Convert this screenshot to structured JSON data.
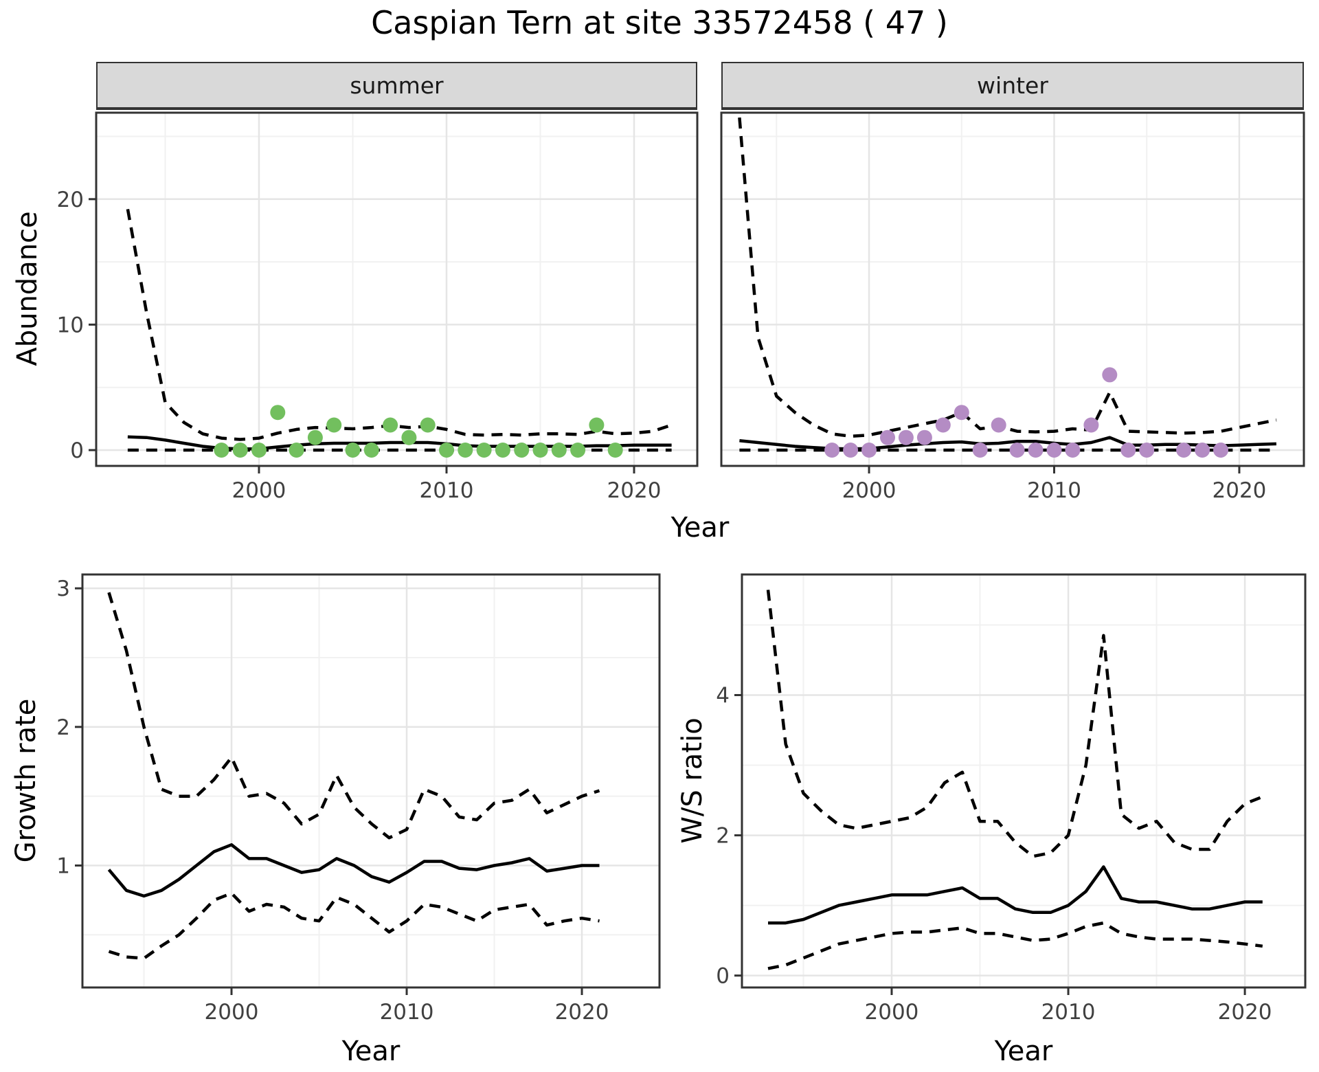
{
  "title": "Caspian Tern at site 33572458 ( 47 )",
  "facets": {
    "summer_label": "summer",
    "winter_label": "winter"
  },
  "axis_labels": {
    "abundance": "Abundance",
    "year": "Year",
    "growth_rate": "Growth rate",
    "ws_ratio": "W/S ratio"
  },
  "colors": {
    "summer_point": "#72BF5E",
    "winter_point": "#B48CC4",
    "line": "#000000",
    "strip_bg": "#d9d9d9",
    "grid_major": "#e5e5e5",
    "grid_minor": "#f1f1f1",
    "border": "#333333",
    "tick_text": "#404040"
  },
  "chart_data": [
    {
      "id": "summer",
      "type": "line",
      "facet_label": "summer",
      "ylabel": "Abundance",
      "xlabel": "Year",
      "axes": {
        "xlim": [
          1991.32,
          2023.37
        ],
        "ylim": [
          -1.26,
          26.89
        ],
        "x_major": {
          "values": [
            2000,
            2010,
            2020
          ],
          "labels": [
            "2000",
            "2010",
            "2020"
          ]
        },
        "x_minor": [
          1995,
          2005,
          2015
        ],
        "y_major": {
          "values": [
            0,
            10,
            20
          ],
          "labels": [
            "0",
            "10",
            "20"
          ]
        },
        "y_minor": [
          5,
          15,
          25
        ],
        "grid": true
      },
      "series": {
        "years": [
          1993,
          1994,
          1995,
          1996,
          1997,
          1998,
          1999,
          2000,
          2001,
          2002,
          2003,
          2004,
          2005,
          2006,
          2007,
          2008,
          2009,
          2010,
          2011,
          2012,
          2013,
          2014,
          2015,
          2016,
          2017,
          2018,
          2019,
          2020,
          2021,
          2022
        ],
        "median": [
          1.05,
          1.0,
          0.8,
          0.55,
          0.3,
          0.15,
          0.1,
          0.1,
          0.25,
          0.4,
          0.5,
          0.55,
          0.55,
          0.55,
          0.6,
          0.6,
          0.6,
          0.5,
          0.35,
          0.3,
          0.3,
          0.3,
          0.3,
          0.3,
          0.3,
          0.35,
          0.35,
          0.4,
          0.4,
          0.4
        ],
        "upper_ci": [
          19.2,
          11.0,
          3.8,
          2.2,
          1.3,
          0.95,
          0.85,
          0.95,
          1.35,
          1.65,
          1.8,
          1.75,
          1.7,
          1.8,
          1.95,
          1.8,
          1.9,
          1.65,
          1.25,
          1.2,
          1.25,
          1.2,
          1.3,
          1.3,
          1.25,
          1.5,
          1.3,
          1.35,
          1.5,
          2.0
        ],
        "lower_ci": [
          0,
          0,
          0,
          0,
          0,
          0,
          0,
          0,
          0,
          0,
          0,
          0,
          0,
          0,
          0,
          0,
          0,
          0,
          0,
          0,
          0,
          0,
          0,
          0,
          0,
          0,
          0,
          0,
          0,
          0
        ]
      },
      "points": {
        "color": "#72BF5E",
        "years": [
          1998,
          1999,
          2000,
          2001,
          2002,
          2003,
          2004,
          2005,
          2006,
          2007,
          2008,
          2009,
          2010,
          2011,
          2012,
          2013,
          2014,
          2015,
          2016,
          2017,
          2018,
          2019
        ],
        "values": [
          0,
          0,
          0,
          3,
          0,
          1,
          2,
          0,
          0,
          2,
          1,
          2,
          0,
          0,
          0,
          0,
          0,
          0,
          0,
          0,
          2,
          0
        ]
      }
    },
    {
      "id": "winter",
      "type": "line",
      "facet_label": "winter",
      "ylabel": "Abundance",
      "xlabel": "Year",
      "axes": {
        "xlim": [
          1992.02,
          2023.49
        ],
        "ylim": [
          -1.26,
          26.89
        ],
        "x_major": {
          "values": [
            2000,
            2010,
            2020
          ],
          "labels": [
            "2000",
            "2010",
            "2020"
          ]
        },
        "x_minor": [
          1995,
          2005,
          2015
        ],
        "y_major": {
          "values": [
            0,
            10,
            20
          ],
          "labels": null
        },
        "y_minor": [
          5,
          15,
          25
        ],
        "grid": true
      },
      "series": {
        "years": [
          1993,
          1994,
          1995,
          1996,
          1997,
          1998,
          1999,
          2000,
          2001,
          2002,
          2003,
          2004,
          2005,
          2006,
          2007,
          2008,
          2009,
          2010,
          2011,
          2012,
          2013,
          2014,
          2015,
          2016,
          2017,
          2018,
          2019,
          2020,
          2021,
          2022
        ],
        "median": [
          0.75,
          0.6,
          0.45,
          0.3,
          0.2,
          0.12,
          0.1,
          0.12,
          0.25,
          0.4,
          0.5,
          0.6,
          0.65,
          0.5,
          0.55,
          0.7,
          0.7,
          0.55,
          0.45,
          0.6,
          1.0,
          0.4,
          0.4,
          0.45,
          0.45,
          0.4,
          0.35,
          0.4,
          0.45,
          0.5
        ],
        "upper_ci": [
          26.5,
          9.0,
          4.3,
          3.0,
          2.0,
          1.3,
          1.1,
          1.2,
          1.5,
          1.8,
          2.1,
          2.4,
          3.0,
          1.7,
          1.9,
          1.5,
          1.45,
          1.5,
          1.7,
          1.6,
          4.6,
          1.5,
          1.45,
          1.4,
          1.35,
          1.4,
          1.5,
          1.8,
          2.1,
          2.4
        ],
        "lower_ci": [
          0,
          0,
          0,
          0,
          0,
          0,
          0,
          0,
          0,
          0,
          0,
          0,
          0,
          0,
          0,
          0,
          0,
          0,
          0,
          0,
          0,
          0,
          0,
          0,
          0,
          0,
          0,
          0,
          0,
          0
        ]
      },
      "points": {
        "color": "#B48CC4",
        "years": [
          1998,
          1999,
          2000,
          2001,
          2002,
          2003,
          2004,
          2005,
          2006,
          2007,
          2008,
          2009,
          2010,
          2011,
          2012,
          2013,
          2014,
          2015,
          2017,
          2018,
          2019
        ],
        "values": [
          0,
          0,
          0,
          1,
          1,
          1,
          2,
          3,
          0,
          2,
          0,
          0,
          0,
          0,
          2,
          6,
          0,
          0,
          0,
          0,
          0
        ]
      }
    },
    {
      "id": "growth",
      "type": "line",
      "facet_label": null,
      "ylabel": "Growth rate",
      "xlabel": "Year",
      "axes": {
        "xlim": [
          1991.49,
          2024.43
        ],
        "ylim": [
          0.12,
          3.1
        ],
        "x_major": {
          "values": [
            2000,
            2010,
            2020
          ],
          "labels": [
            "2000",
            "2010",
            "2020"
          ]
        },
        "x_minor": [
          1995,
          2005,
          2015
        ],
        "y_major": {
          "values": [
            1,
            2,
            3
          ],
          "labels": [
            "1",
            "2",
            "3"
          ]
        },
        "y_minor": [
          0.5,
          1.5,
          2.5
        ],
        "grid": true
      },
      "series": {
        "years": [
          1993,
          1994,
          1995,
          1996,
          1997,
          1998,
          1999,
          2000,
          2001,
          2002,
          2003,
          2004,
          2005,
          2006,
          2007,
          2008,
          2009,
          2010,
          2011,
          2012,
          2013,
          2014,
          2015,
          2016,
          2017,
          2018,
          2019,
          2020,
          2021
        ],
        "median": [
          0.97,
          0.82,
          0.78,
          0.82,
          0.9,
          1.0,
          1.1,
          1.15,
          1.05,
          1.05,
          1.0,
          0.95,
          0.97,
          1.05,
          1.0,
          0.92,
          0.88,
          0.95,
          1.03,
          1.03,
          0.98,
          0.97,
          1.0,
          1.02,
          1.05,
          0.96,
          0.98,
          1.0,
          1.0
        ],
        "upper_ci": [
          2.97,
          2.55,
          2.0,
          1.55,
          1.5,
          1.5,
          1.62,
          1.78,
          1.5,
          1.52,
          1.45,
          1.3,
          1.37,
          1.65,
          1.42,
          1.3,
          1.2,
          1.26,
          1.55,
          1.5,
          1.35,
          1.33,
          1.45,
          1.47,
          1.55,
          1.38,
          1.44,
          1.5,
          1.54
        ],
        "lower_ci": [
          0.38,
          0.34,
          0.33,
          0.42,
          0.5,
          0.62,
          0.75,
          0.8,
          0.67,
          0.72,
          0.7,
          0.62,
          0.6,
          0.77,
          0.72,
          0.62,
          0.52,
          0.6,
          0.72,
          0.7,
          0.65,
          0.6,
          0.68,
          0.7,
          0.72,
          0.57,
          0.6,
          0.62,
          0.6
        ]
      },
      "points": null
    },
    {
      "id": "ws",
      "type": "line",
      "facet_label": null,
      "ylabel": "W/S ratio",
      "xlabel": "Year",
      "axes": {
        "xlim": [
          1991.52,
          2023.42
        ],
        "ylim": [
          -0.17,
          5.72
        ],
        "x_major": {
          "values": [
            2000,
            2010,
            2020
          ],
          "labels": [
            "2000",
            "2010",
            "2020"
          ]
        },
        "x_minor": [
          1995,
          2005,
          2015
        ],
        "y_major": {
          "values": [
            0,
            2,
            4
          ],
          "labels": [
            "0",
            "2",
            "4"
          ]
        },
        "y_minor": [
          1,
          3,
          5
        ],
        "grid": true
      },
      "series": {
        "years": [
          1993,
          1994,
          1995,
          1996,
          1997,
          1998,
          1999,
          2000,
          2001,
          2002,
          2003,
          2004,
          2005,
          2006,
          2007,
          2008,
          2009,
          2010,
          2011,
          2012,
          2013,
          2014,
          2015,
          2016,
          2017,
          2018,
          2019,
          2020,
          2021
        ],
        "median": [
          0.75,
          0.75,
          0.8,
          0.9,
          1.0,
          1.05,
          1.1,
          1.15,
          1.15,
          1.15,
          1.2,
          1.25,
          1.1,
          1.1,
          0.95,
          0.9,
          0.9,
          1.0,
          1.2,
          1.55,
          1.1,
          1.05,
          1.05,
          1.0,
          0.95,
          0.95,
          1.0,
          1.05,
          1.05
        ],
        "upper_ci": [
          5.5,
          3.3,
          2.6,
          2.35,
          2.15,
          2.1,
          2.15,
          2.2,
          2.25,
          2.4,
          2.75,
          2.9,
          2.2,
          2.2,
          1.9,
          1.7,
          1.75,
          2.0,
          3.0,
          4.85,
          2.3,
          2.1,
          2.2,
          1.9,
          1.8,
          1.8,
          2.2,
          2.45,
          2.55
        ],
        "lower_ci": [
          0.1,
          0.15,
          0.25,
          0.35,
          0.45,
          0.5,
          0.55,
          0.6,
          0.62,
          0.62,
          0.65,
          0.68,
          0.6,
          0.6,
          0.55,
          0.5,
          0.52,
          0.6,
          0.7,
          0.75,
          0.6,
          0.55,
          0.52,
          0.52,
          0.52,
          0.5,
          0.48,
          0.45,
          0.42
        ]
      },
      "points": null
    }
  ],
  "line_styles": {
    "median": "solid",
    "upper_ci": "dashed",
    "lower_ci": "dashed"
  }
}
